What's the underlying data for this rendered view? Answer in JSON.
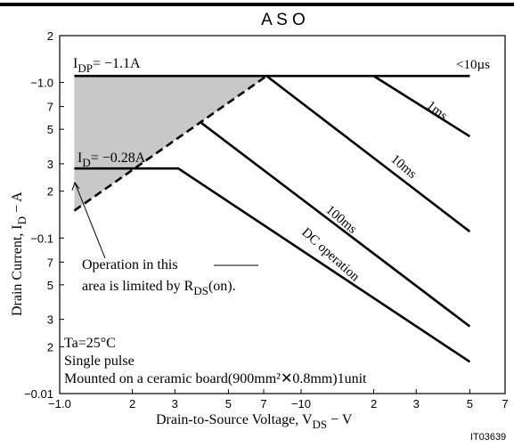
{
  "chart_data": {
    "type": "line",
    "title": "A S O",
    "x_label": {
      "main": "Drain-to-Source Voltage, V",
      "sub": "DS",
      "rest": " − V"
    },
    "y_label": {
      "main": "Drain Current, I",
      "sub": "D",
      "rest": " − A"
    },
    "figure_id": "IT03639",
    "log_x": true,
    "log_y": true,
    "grid": false,
    "xlim": [
      1,
      70
    ],
    "xticks": [
      {
        "value": 1,
        "label": "−1.0"
      },
      2,
      3,
      5,
      7,
      {
        "value": 10,
        "label": "−10"
      },
      {
        "value": 20,
        "label": "2"
      },
      {
        "value": 30,
        "label": "3"
      },
      {
        "value": 50,
        "label": "5"
      },
      {
        "value": 70,
        "label": "7"
      }
    ],
    "ylim": [
      0.01,
      2
    ],
    "yticks": [
      2,
      {
        "value": 1,
        "label": "−1.0"
      },
      {
        "value": 0.7,
        "label": "7"
      },
      {
        "value": 0.5,
        "label": "5"
      },
      {
        "value": 0.3,
        "label": "3"
      },
      {
        "value": 0.2,
        "label": "2"
      },
      {
        "value": 0.1,
        "label": "−0.1"
      },
      {
        "value": 0.07,
        "label": "7"
      },
      {
        "value": 0.05,
        "label": "5"
      },
      {
        "value": 0.03,
        "label": "3"
      },
      {
        "value": 0.02,
        "label": "2"
      },
      {
        "value": 0.01,
        "label": "−0.01"
      }
    ],
    "series": [
      {
        "name": "<10µs",
        "color": "#000000",
        "x": [
          1.15,
          50
        ],
        "values": [
          1.1,
          1.1
        ]
      },
      {
        "name": "1ms",
        "color": "#000000",
        "x": [
          20,
          50
        ],
        "values": [
          1.1,
          0.45
        ]
      },
      {
        "name": "10ms",
        "color": "#000000",
        "x": [
          7.2,
          50
        ],
        "values": [
          1.1,
          0.11
        ]
      },
      {
        "name": "100ms",
        "color": "#000000",
        "x": [
          3.8,
          50
        ],
        "values": [
          0.56,
          0.027
        ]
      },
      {
        "name": "DC operation",
        "color": "#000000",
        "x": [
          1.15,
          3.1,
          50
        ],
        "values": [
          0.28,
          0.28,
          0.016
        ]
      }
    ],
    "limit_line": {
      "color": "#000000",
      "shade": "#c8c8c8",
      "x": [
        1.15,
        7.2
      ],
      "values": [
        0.15,
        1.1
      ]
    },
    "annotations": {
      "idp": {
        "main": "I",
        "sub": "DP",
        "rest": "= −1.1A"
      },
      "id": {
        "main": "I",
        "sub": "D",
        "rest": "= −0.28A"
      },
      "limit_note_1": "Operation in this",
      "limit_note_2": {
        "main": "area is limited by R",
        "sub": "DS",
        "rest": "(on)."
      },
      "conditions": [
        "Ta=25°C",
        "Single pulse",
        "Mounted on a ceramic board(900mm²✕0.8mm)1unit"
      ]
    }
  }
}
